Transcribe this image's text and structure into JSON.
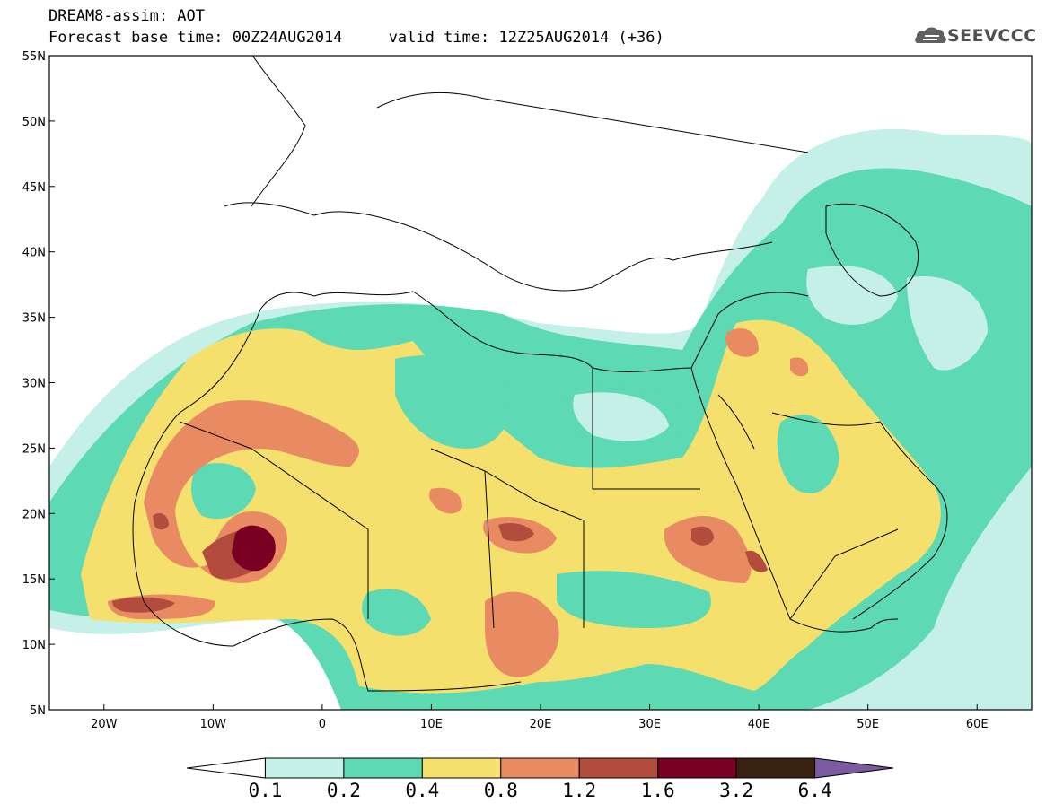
{
  "header": {
    "title_line1": "DREAM8-assim: AOT",
    "title_line2": "Forecast base time: 00Z24AUG2014     valid time: 12Z25AUG2014 (+36)"
  },
  "logo": {
    "text": "SEEVCCC",
    "icon": "cloud-icon"
  },
  "map": {
    "lon_range": [
      -25,
      65
    ],
    "lat_range": [
      5,
      55
    ],
    "lon_ticks": [
      {
        "value": -20,
        "label": "20W"
      },
      {
        "value": -10,
        "label": "10W"
      },
      {
        "value": 0,
        "label": "0"
      },
      {
        "value": 10,
        "label": "10E"
      },
      {
        "value": 20,
        "label": "20E"
      },
      {
        "value": 30,
        "label": "30E"
      },
      {
        "value": 40,
        "label": "40E"
      },
      {
        "value": 50,
        "label": "50E"
      },
      {
        "value": 60,
        "label": "60E"
      }
    ],
    "lat_ticks": [
      {
        "value": 5,
        "label": "5N"
      },
      {
        "value": 10,
        "label": "10N"
      },
      {
        "value": 15,
        "label": "15N"
      },
      {
        "value": 20,
        "label": "20N"
      },
      {
        "value": 25,
        "label": "25N"
      },
      {
        "value": 30,
        "label": "30N"
      },
      {
        "value": 35,
        "label": "35N"
      },
      {
        "value": 40,
        "label": "40N"
      },
      {
        "value": 45,
        "label": "45N"
      },
      {
        "value": 50,
        "label": "50N"
      },
      {
        "value": 55,
        "label": "55N"
      }
    ]
  },
  "colorbar": {
    "labels": [
      "0.1",
      "0.2",
      "0.4",
      "0.8",
      "1.2",
      "1.6",
      "3.2",
      "6.4"
    ],
    "colors": [
      "#ffffff",
      "#c5f0e8",
      "#5dd9b4",
      "#f5e06e",
      "#e88a62",
      "#b24c3d",
      "#7a0022",
      "#3a2212",
      "#7a5aa0"
    ]
  }
}
